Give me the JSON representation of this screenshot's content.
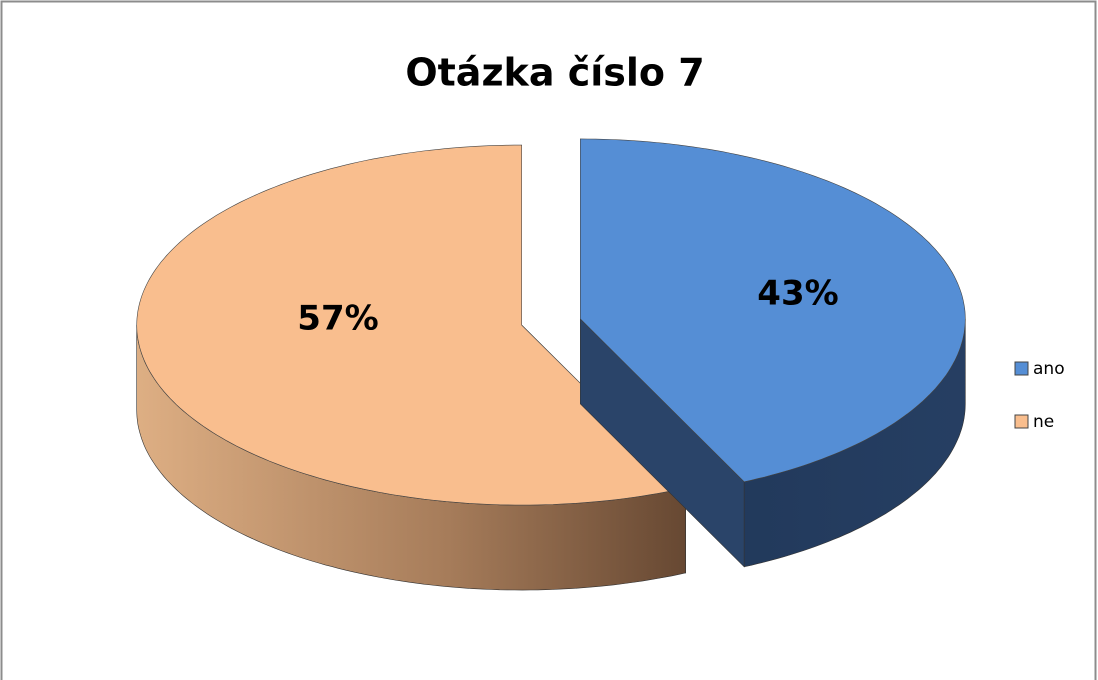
{
  "chart_data": {
    "type": "pie",
    "title": "Otázka číslo 7",
    "categories": [
      "ano",
      "ne"
    ],
    "values": [
      43,
      57
    ],
    "value_labels": [
      "43%",
      "57%"
    ],
    "colors": [
      "#558ed5",
      "#f9be8e"
    ],
    "legend": "right"
  }
}
